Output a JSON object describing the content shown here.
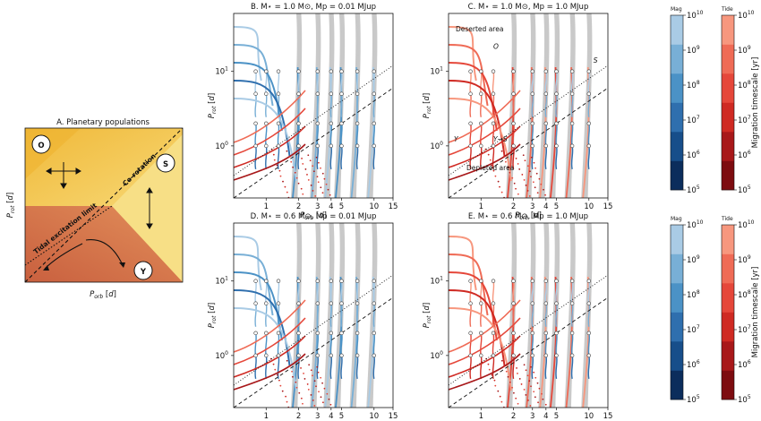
{
  "panel_a": {
    "title": "A. Planetary populations",
    "xlabel": "P_orb [d]",
    "ylabel": "P_rot [d]",
    "corotation_label": "Co-rotation",
    "tidal_label": "Tidal excitation limit",
    "markers": [
      {
        "label": "O"
      },
      {
        "label": "S"
      },
      {
        "label": "Y"
      }
    ]
  },
  "colorbars": [
    {
      "title": "Mag",
      "ticks": [
        "10^5",
        "10^6",
        "10^7",
        "10^8",
        "10^9",
        "10^10"
      ]
    },
    {
      "title": "Tide",
      "ticks": [
        "10^5",
        "10^6",
        "10^7",
        "10^8",
        "10^9",
        "10^10"
      ],
      "label": "Migration timescale [yr]"
    },
    {
      "title": "Mag",
      "ticks": [
        "10^5",
        "10^6",
        "10^7",
        "10^8",
        "10^9",
        "10^10"
      ]
    },
    {
      "title": "Tide",
      "ticks": [
        "10^5",
        "10^6",
        "10^7",
        "10^8",
        "10^9",
        "10^10"
      ],
      "label": "Migration timescale [yr]"
    }
  ],
  "chart_data": [
    {
      "panel": "B",
      "type": "line",
      "title": "B. M⋆ = 1.0 M⊙, Mp = 0.01 MJup",
      "xlabel": "P_orb [d]",
      "ylabel": "P_rot [d]",
      "xscale": "log",
      "yscale": "log",
      "xlim": [
        0.5,
        15
      ],
      "ylim": [
        0.2,
        60
      ],
      "xticks": [
        "1",
        "2",
        "3",
        "4",
        "5",
        "10",
        "15"
      ],
      "yticks": [
        "10^0",
        "10^1"
      ],
      "reference_lines": [
        {
          "name": "Co-rotation",
          "style": "dashed",
          "points": [
            [
              0.5,
              0.2
            ],
            [
              15,
              6.0
            ]
          ]
        },
        {
          "name": "Tidal excitation limit",
          "style": "dotted",
          "points": [
            [
              0.5,
              0.4
            ],
            [
              15,
              12.0
            ]
          ]
        }
      ],
      "initial_grid": {
        "porb": [
          0.8,
          1.0,
          1.3,
          2.0,
          3.0,
          4.0,
          5.0,
          7.0,
          10.0
        ],
        "prot": [
          1,
          2,
          5,
          10
        ]
      }
    },
    {
      "panel": "C",
      "type": "line",
      "title": "C. M⋆ = 1.0 M⊙, Mp = 1.0 MJup",
      "xlabel": "P_orb [d]",
      "ylabel": "P_rot [d]",
      "xscale": "log",
      "yscale": "log",
      "xlim": [
        0.5,
        15
      ],
      "ylim": [
        0.2,
        60
      ],
      "xticks": [
        "1",
        "2",
        "3",
        "4",
        "5",
        "10",
        "15"
      ],
      "yticks": [
        "10^0",
        "10^1"
      ],
      "annotations": [
        "Deserted area",
        "Depleted area",
        "O",
        "S",
        "Y",
        "Y→S"
      ],
      "reference_lines": [
        {
          "name": "Co-rotation",
          "style": "dashed",
          "points": [
            [
              0.5,
              0.2
            ],
            [
              15,
              6.0
            ]
          ]
        },
        {
          "name": "Tidal excitation limit",
          "style": "dotted",
          "points": [
            [
              0.5,
              0.4
            ],
            [
              15,
              12.0
            ]
          ]
        }
      ],
      "initial_grid": {
        "porb": [
          0.8,
          1.0,
          1.3,
          2.0,
          3.0,
          4.0,
          5.0,
          7.0,
          10.0
        ],
        "prot": [
          1,
          2,
          5,
          10
        ]
      }
    },
    {
      "panel": "D",
      "type": "line",
      "title": "D. M⋆ = 0.6 M⊙, Mp = 0.01 MJup",
      "xlabel": "P_orb [d]",
      "ylabel": "P_rot [d]",
      "xscale": "log",
      "yscale": "log",
      "xlim": [
        0.5,
        15
      ],
      "ylim": [
        0.2,
        60
      ],
      "xticks": [
        "1",
        "2",
        "3",
        "4",
        "5",
        "10",
        "15"
      ],
      "yticks": [
        "10^0",
        "10^1"
      ],
      "reference_lines": [
        {
          "name": "Co-rotation",
          "style": "dashed",
          "points": [
            [
              0.5,
              0.2
            ],
            [
              15,
              6.0
            ]
          ]
        },
        {
          "name": "Tidal excitation limit",
          "style": "dotted",
          "points": [
            [
              0.5,
              0.4
            ],
            [
              15,
              12.0
            ]
          ]
        }
      ],
      "initial_grid": {
        "porb": [
          0.8,
          1.0,
          1.3,
          2.0,
          3.0,
          4.0,
          5.0,
          7.0,
          10.0
        ],
        "prot": [
          1,
          2,
          5,
          10
        ]
      }
    },
    {
      "panel": "E",
      "type": "line",
      "title": "E. M⋆ = 0.6 M⊙, Mp = 1.0 MJup",
      "xlabel": "P_orb [d]",
      "ylabel": "P_rot [d]",
      "xscale": "log",
      "yscale": "log",
      "xlim": [
        0.5,
        15
      ],
      "ylim": [
        0.2,
        60
      ],
      "xticks": [
        "1",
        "2",
        "3",
        "4",
        "5",
        "10",
        "15"
      ],
      "yticks": [
        "10^0",
        "10^1"
      ],
      "reference_lines": [
        {
          "name": "Co-rotation",
          "style": "dashed",
          "points": [
            [
              0.5,
              0.2
            ],
            [
              15,
              6.0
            ]
          ]
        },
        {
          "name": "Tidal excitation limit",
          "style": "dotted",
          "points": [
            [
              0.5,
              0.4
            ],
            [
              15,
              12.0
            ]
          ]
        }
      ],
      "initial_grid": {
        "porb": [
          0.8,
          1.0,
          1.3,
          2.0,
          3.0,
          4.0,
          5.0,
          7.0,
          10.0
        ],
        "prot": [
          1,
          2,
          5,
          10
        ]
      }
    }
  ],
  "colors": {
    "mag": [
      "#0b2d5c",
      "#174e8a",
      "#2f6fae",
      "#4b92c6",
      "#78afd6",
      "#a9cbe5"
    ],
    "tide": [
      "#7d0c10",
      "#a8181a",
      "#cf2a23",
      "#e5473a",
      "#ef6b56",
      "#f7977e"
    ],
    "grey": "#c9c9c9",
    "panel_a_upper": "#f2c44a",
    "panel_a_lower": "#d4714a",
    "panel_a_right": "#f7df86"
  }
}
